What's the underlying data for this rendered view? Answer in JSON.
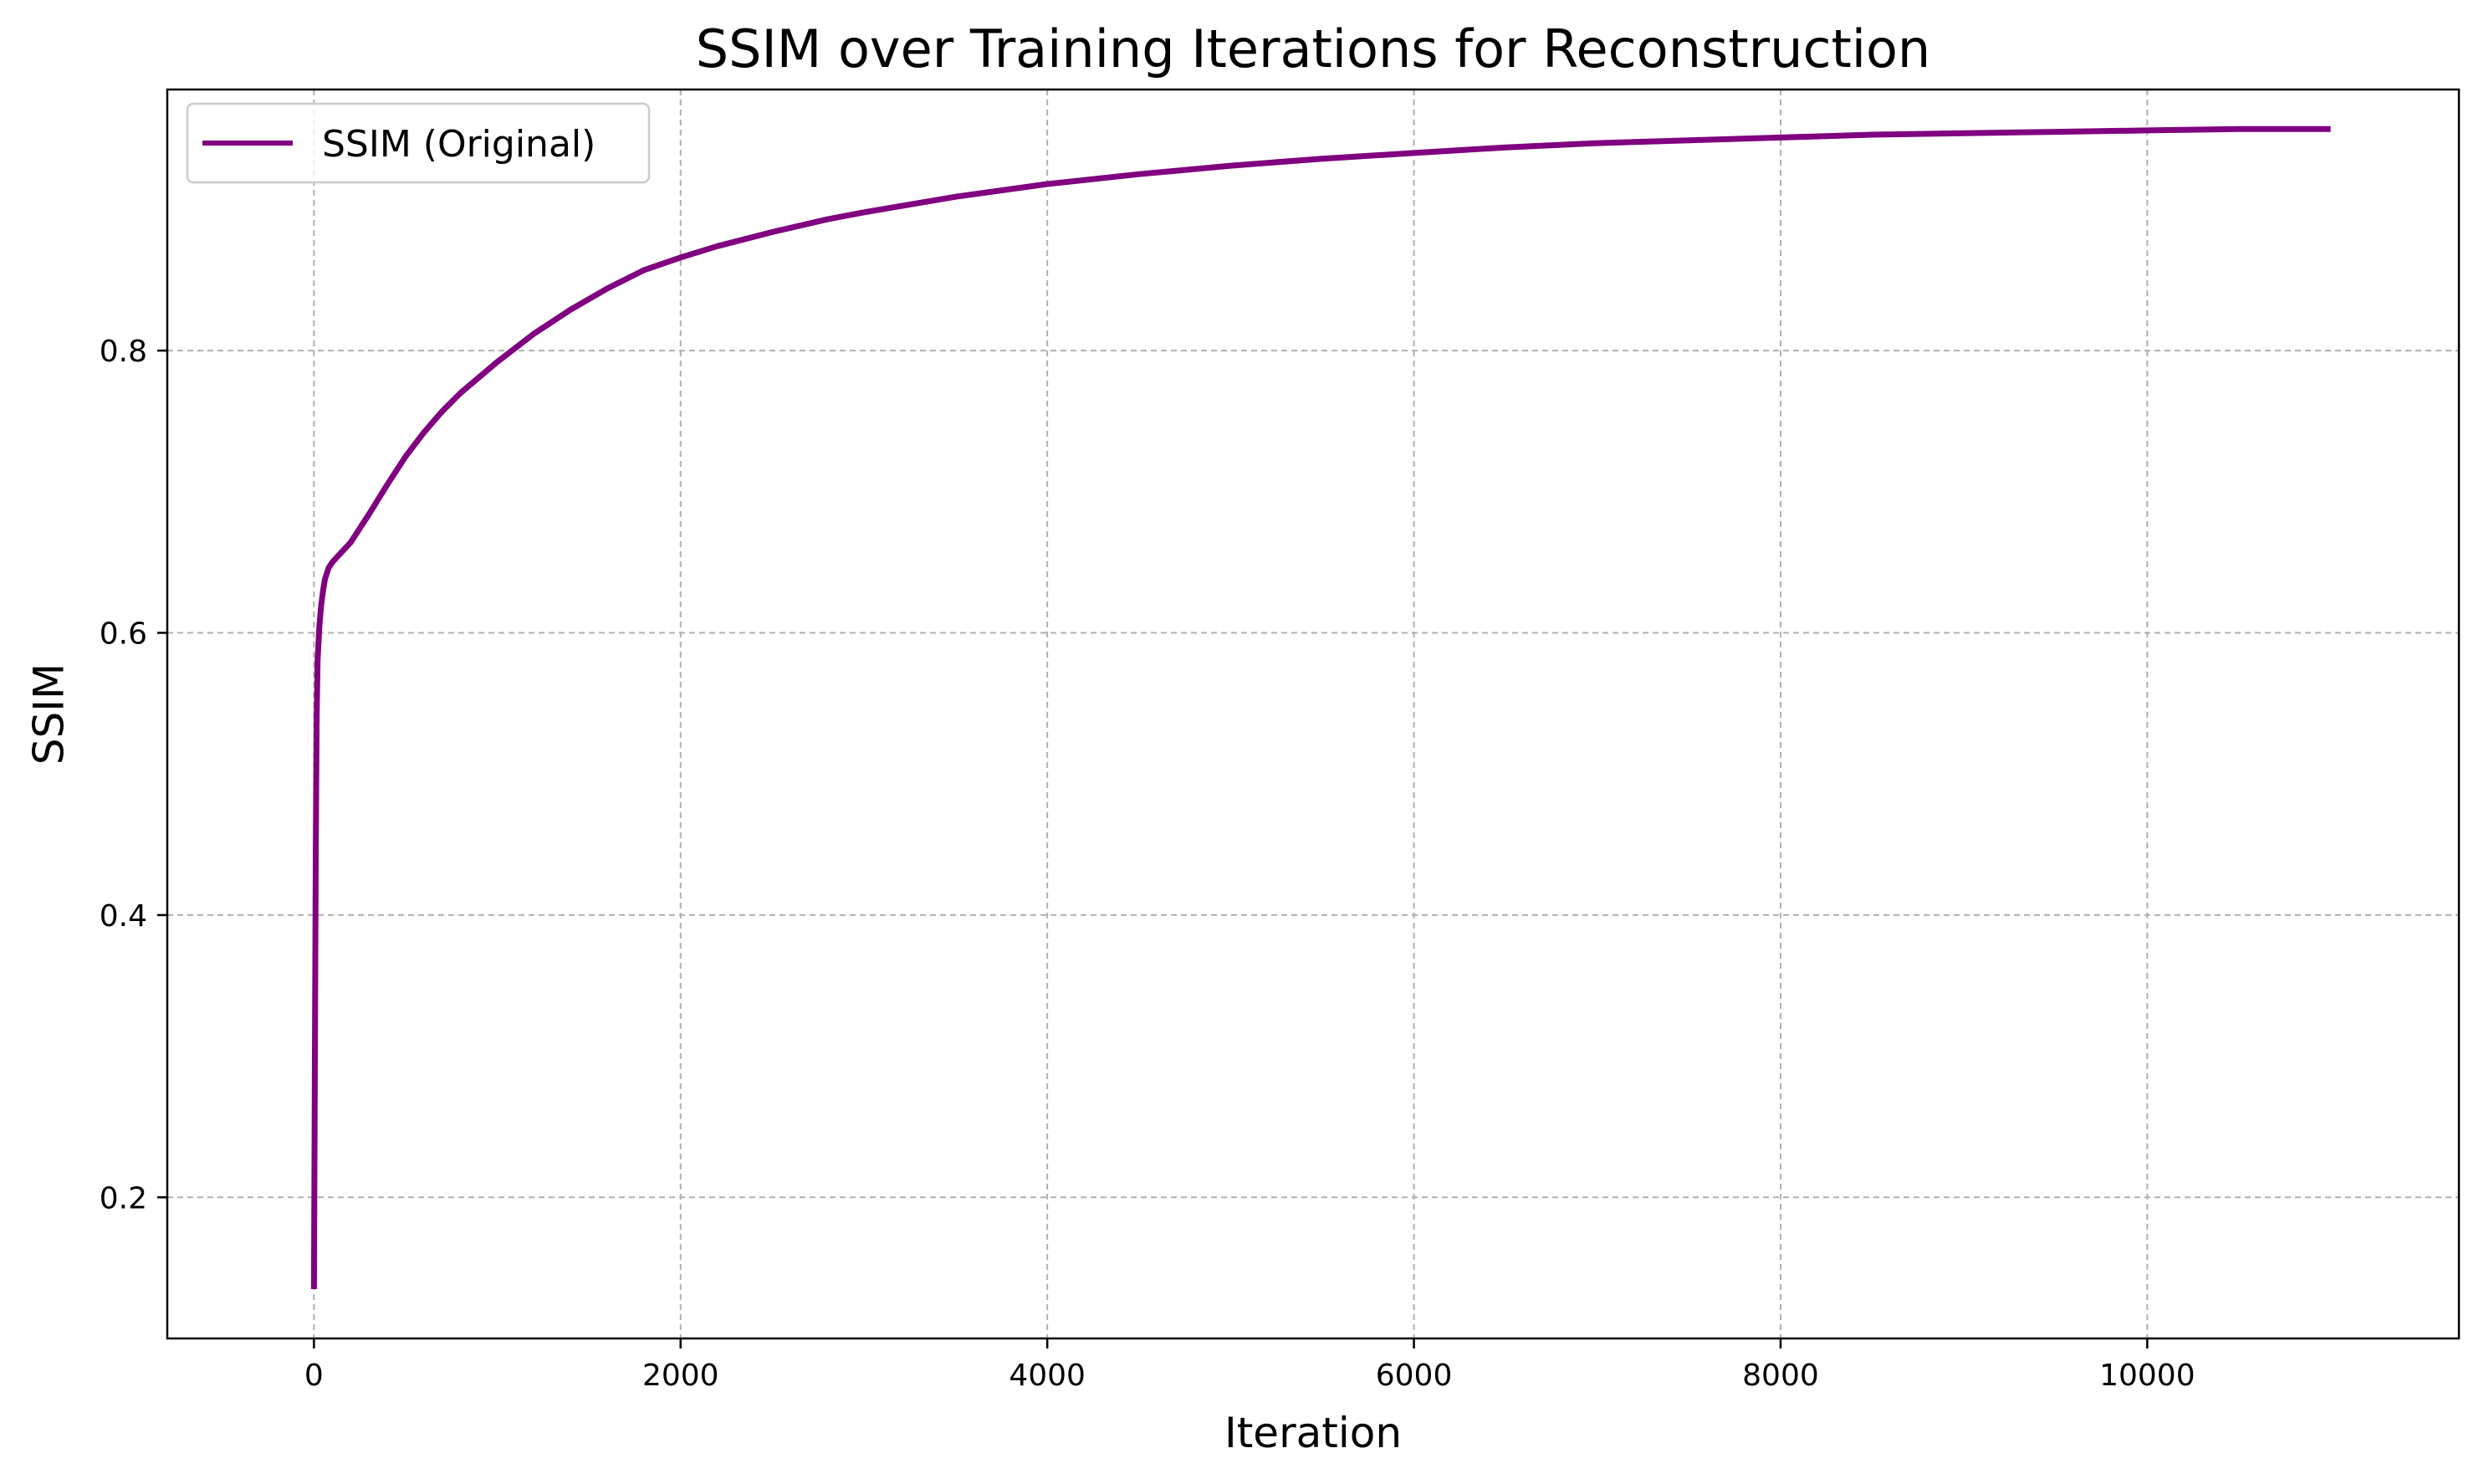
{
  "chart_data": {
    "type": "line",
    "title": "SSIM over Training Iterations for Reconstruction",
    "xlabel": "Iteration",
    "ylabel": "SSIM",
    "xlim": [
      -800,
      11700
    ],
    "ylim": [
      0.1,
      0.985
    ],
    "xticks": [
      0,
      2000,
      4000,
      6000,
      8000,
      10000
    ],
    "yticks": [
      0.2,
      0.4,
      0.6,
      0.8
    ],
    "xtick_labels": [
      "0",
      "2000",
      "4000",
      "6000",
      "8000",
      "10000"
    ],
    "ytick_labels": [
      "0.2",
      "0.4",
      "0.6",
      "0.8"
    ],
    "grid": true,
    "legend_position": "top-left",
    "series": [
      {
        "name": "SSIM (Original)",
        "color": "#800080",
        "x": [
          0,
          5,
          10,
          15,
          20,
          30,
          40,
          50,
          60,
          80,
          100,
          150,
          200,
          300,
          400,
          500,
          600,
          700,
          800,
          1000,
          1200,
          1400,
          1600,
          1800,
          2000,
          2200,
          2500,
          2800,
          3000,
          3500,
          4000,
          4500,
          5000,
          5500,
          6000,
          6500,
          7000,
          7500,
          8000,
          8500,
          9000,
          9500,
          10000,
          10500,
          11000
        ],
        "y": [
          0.135,
          0.3,
          0.45,
          0.54,
          0.58,
          0.605,
          0.62,
          0.63,
          0.638,
          0.646,
          0.65,
          0.657,
          0.664,
          0.684,
          0.705,
          0.725,
          0.742,
          0.757,
          0.77,
          0.792,
          0.812,
          0.829,
          0.844,
          0.857,
          0.866,
          0.874,
          0.884,
          0.893,
          0.898,
          0.909,
          0.918,
          0.925,
          0.931,
          0.936,
          0.94,
          0.944,
          0.947,
          0.949,
          0.951,
          0.953,
          0.954,
          0.955,
          0.956,
          0.957,
          0.957
        ]
      }
    ]
  }
}
